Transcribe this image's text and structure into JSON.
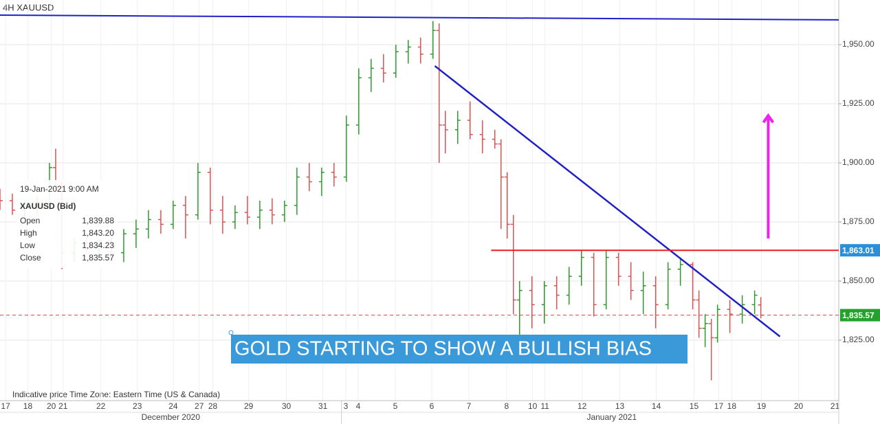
{
  "chart_data": {
    "type": "ohlc",
    "title": "4H   XAUUSD",
    "footer": "Indicative price    Time Zone: Eastern Time (US & Canada)",
    "annotation": "GOLD  STARTING TO SHOW A BULLISH BIAS",
    "months": [
      {
        "label": "December 2020",
        "value": 27.6
      },
      {
        "label": "January 2021",
        "value": 98.9
      }
    ],
    "month_breaks": [
      55.2,
      135.6
    ],
    "info": {
      "date": "19-Jan-2021 9:00 AM",
      "symbol": "XAUUSD (Bid)",
      "rows": [
        [
          "Open",
          "1,839.88"
        ],
        [
          "High",
          "1,843.20"
        ],
        [
          "Low",
          "1,834.23"
        ],
        [
          "Close",
          "1,835.57"
        ]
      ]
    },
    "up_color": "#2e9a2e",
    "down_color": "#e0504f",
    "xlim": [
      0,
      135.6
    ],
    "ylim": [
      1799.4,
      1968.9
    ],
    "yticks": [
      {
        "value": 1825,
        "label": "1,825.00"
      },
      {
        "value": 1850,
        "label": "1,850.00"
      },
      {
        "value": 1875,
        "label": "1,875.00"
      },
      {
        "value": 1900,
        "label": "1,900.00"
      },
      {
        "value": 1925,
        "label": "1,925.00"
      },
      {
        "value": 1950,
        "label": "1,950.00"
      }
    ],
    "xticks": [
      {
        "value": 0.9,
        "label": "17"
      },
      {
        "value": 4.5,
        "label": "18"
      },
      {
        "value": 8.3,
        "label": "20"
      },
      {
        "value": 10.2,
        "label": "21"
      },
      {
        "value": 16.3,
        "label": "22"
      },
      {
        "value": 22.2,
        "label": "23"
      },
      {
        "value": 28,
        "label": "24"
      },
      {
        "value": 32.2,
        "label": "27"
      },
      {
        "value": 34.4,
        "label": "28"
      },
      {
        "value": 40.2,
        "label": "29"
      },
      {
        "value": 46.3,
        "label": "30"
      },
      {
        "value": 52.2,
        "label": "31"
      },
      {
        "value": 55.9,
        "label": "3"
      },
      {
        "value": 57.9,
        "label": "4"
      },
      {
        "value": 63.9,
        "label": "5"
      },
      {
        "value": 69.8,
        "label": "6"
      },
      {
        "value": 75.8,
        "label": "7"
      },
      {
        "value": 81.9,
        "label": "8"
      },
      {
        "value": 86.1,
        "label": "10"
      },
      {
        "value": 88.1,
        "label": "11"
      },
      {
        "value": 94.1,
        "label": "12"
      },
      {
        "value": 100.2,
        "label": "13"
      },
      {
        "value": 106.1,
        "label": "14"
      },
      {
        "value": 112.2,
        "label": "15"
      },
      {
        "value": 116.2,
        "label": "17"
      },
      {
        "value": 118.3,
        "label": "18"
      },
      {
        "value": 123.1,
        "label": "19"
      },
      {
        "value": 129.1,
        "label": "20"
      },
      {
        "value": 135,
        "label": "21"
      }
    ],
    "price_badges": [
      {
        "value": 1863.01,
        "label": "1,863.01",
        "color": "#2b8fd6"
      },
      {
        "value": 1835.57,
        "label": "1,835.57",
        "color": "#22a22a"
      }
    ],
    "lines": [
      {
        "name": "resistance",
        "color": "#1f1fc8",
        "x": [
          0,
          135.6
        ],
        "y": [
          1962.5,
          1960.5
        ],
        "width": 2
      },
      {
        "name": "trendline",
        "color": "#1f1fc8",
        "x": [
          70.3,
          126.1
        ],
        "y": [
          1941,
          1826.5
        ],
        "width": 2.5
      },
      {
        "name": "support",
        "color": "#e81e1e",
        "x": [
          79.4,
          135.6
        ],
        "y": [
          1863.01,
          1863.01
        ],
        "width": 2
      },
      {
        "name": "last-price",
        "color": "#e04040",
        "x": [
          0,
          135.6
        ],
        "y": [
          1835.57,
          1835.57
        ],
        "width": 1,
        "dashed": true
      }
    ],
    "arrow": {
      "color": "#ee22ee",
      "x": 124.2,
      "y": [
        1868,
        1920
      ]
    },
    "bars": [
      {
        "x": 0,
        "open": 1886,
        "high": 1889,
        "low": 1880,
        "close": 1884
      },
      {
        "x": 2,
        "open": 1884,
        "high": 1887,
        "low": 1878,
        "close": 1880
      },
      {
        "x": 4,
        "open": 1880,
        "high": 1884,
        "low": 1876,
        "close": 1882
      },
      {
        "x": 6,
        "open": 1882,
        "high": 1886,
        "low": 1878,
        "close": 1883
      },
      {
        "x": 8,
        "open": 1883,
        "high": 1900,
        "low": 1880,
        "close": 1898
      },
      {
        "x": 9,
        "open": 1898,
        "high": 1906,
        "low": 1888,
        "close": 1890
      },
      {
        "x": 10,
        "open": 1890,
        "high": 1892,
        "low": 1855,
        "close": 1862
      },
      {
        "x": 12,
        "open": 1862,
        "high": 1868,
        "low": 1858,
        "close": 1866
      },
      {
        "x": 14,
        "open": 1866,
        "high": 1870,
        "low": 1862,
        "close": 1864
      },
      {
        "x": 16,
        "open": 1864,
        "high": 1868,
        "low": 1860,
        "close": 1867
      },
      {
        "x": 18,
        "open": 1867,
        "high": 1870,
        "low": 1858,
        "close": 1862
      },
      {
        "x": 20,
        "open": 1862,
        "high": 1872,
        "low": 1858,
        "close": 1870
      },
      {
        "x": 22,
        "open": 1870,
        "high": 1876,
        "low": 1864,
        "close": 1872
      },
      {
        "x": 24,
        "open": 1872,
        "high": 1880,
        "low": 1868,
        "close": 1876
      },
      {
        "x": 26,
        "open": 1876,
        "high": 1880,
        "low": 1870,
        "close": 1874
      },
      {
        "x": 28,
        "open": 1874,
        "high": 1884,
        "low": 1872,
        "close": 1882
      },
      {
        "x": 30,
        "open": 1882,
        "high": 1886,
        "low": 1868,
        "close": 1878
      },
      {
        "x": 32,
        "open": 1878,
        "high": 1900,
        "low": 1876,
        "close": 1896
      },
      {
        "x": 34,
        "open": 1896,
        "high": 1898,
        "low": 1874,
        "close": 1880
      },
      {
        "x": 36,
        "open": 1880,
        "high": 1886,
        "low": 1870,
        "close": 1875
      },
      {
        "x": 38,
        "open": 1875,
        "high": 1882,
        "low": 1872,
        "close": 1879
      },
      {
        "x": 40,
        "open": 1879,
        "high": 1886,
        "low": 1874,
        "close": 1877
      },
      {
        "x": 42,
        "open": 1877,
        "high": 1884,
        "low": 1872,
        "close": 1880
      },
      {
        "x": 44,
        "open": 1880,
        "high": 1885,
        "low": 1874,
        "close": 1878
      },
      {
        "x": 46,
        "open": 1878,
        "high": 1884,
        "low": 1875,
        "close": 1882
      },
      {
        "x": 48,
        "open": 1882,
        "high": 1898,
        "low": 1878,
        "close": 1894
      },
      {
        "x": 50,
        "open": 1894,
        "high": 1900,
        "low": 1888,
        "close": 1892
      },
      {
        "x": 52,
        "open": 1892,
        "high": 1898,
        "low": 1886,
        "close": 1896
      },
      {
        "x": 54,
        "open": 1896,
        "high": 1900,
        "low": 1890,
        "close": 1894
      },
      {
        "x": 56,
        "open": 1894,
        "high": 1920,
        "low": 1892,
        "close": 1916
      },
      {
        "x": 58,
        "open": 1916,
        "high": 1940,
        "low": 1912,
        "close": 1936
      },
      {
        "x": 60,
        "open": 1936,
        "high": 1944,
        "low": 1930,
        "close": 1940
      },
      {
        "x": 62,
        "open": 1940,
        "high": 1946,
        "low": 1934,
        "close": 1938
      },
      {
        "x": 64,
        "open": 1938,
        "high": 1950,
        "low": 1936,
        "close": 1947
      },
      {
        "x": 66,
        "open": 1947,
        "high": 1952,
        "low": 1942,
        "close": 1949
      },
      {
        "x": 68,
        "open": 1949,
        "high": 1953,
        "low": 1942,
        "close": 1946
      },
      {
        "x": 70,
        "open": 1946,
        "high": 1960,
        "low": 1944,
        "close": 1956
      },
      {
        "x": 71,
        "open": 1956,
        "high": 1959,
        "low": 1900,
        "close": 1916
      },
      {
        "x": 72,
        "open": 1916,
        "high": 1922,
        "low": 1904,
        "close": 1914
      },
      {
        "x": 74,
        "open": 1914,
        "high": 1922,
        "low": 1908,
        "close": 1918
      },
      {
        "x": 76,
        "open": 1918,
        "high": 1926,
        "low": 1910,
        "close": 1912
      },
      {
        "x": 78,
        "open": 1912,
        "high": 1918,
        "low": 1904,
        "close": 1910
      },
      {
        "x": 80,
        "open": 1910,
        "high": 1914,
        "low": 1906,
        "close": 1908
      },
      {
        "x": 81,
        "open": 1908,
        "high": 1910,
        "low": 1872,
        "close": 1894
      },
      {
        "x": 82,
        "open": 1894,
        "high": 1896,
        "low": 1868,
        "close": 1874
      },
      {
        "x": 83,
        "open": 1874,
        "high": 1878,
        "low": 1836,
        "close": 1842
      },
      {
        "x": 84,
        "open": 1842,
        "high": 1850,
        "low": 1824,
        "close": 1846
      },
      {
        "x": 86,
        "open": 1846,
        "high": 1852,
        "low": 1830,
        "close": 1840
      },
      {
        "x": 88,
        "open": 1840,
        "high": 1850,
        "low": 1832,
        "close": 1848
      },
      {
        "x": 90,
        "open": 1848,
        "high": 1852,
        "low": 1838,
        "close": 1844
      },
      {
        "x": 92,
        "open": 1844,
        "high": 1856,
        "low": 1840,
        "close": 1852
      },
      {
        "x": 94,
        "open": 1852,
        "high": 1863,
        "low": 1848,
        "close": 1860
      },
      {
        "x": 96,
        "open": 1860,
        "high": 1862,
        "low": 1835,
        "close": 1840
      },
      {
        "x": 98,
        "open": 1840,
        "high": 1863,
        "low": 1838,
        "close": 1860
      },
      {
        "x": 100,
        "open": 1860,
        "high": 1862,
        "low": 1848,
        "close": 1852
      },
      {
        "x": 102,
        "open": 1852,
        "high": 1858,
        "low": 1842,
        "close": 1846
      },
      {
        "x": 104,
        "open": 1846,
        "high": 1854,
        "low": 1836,
        "close": 1848
      },
      {
        "x": 106,
        "open": 1848,
        "high": 1852,
        "low": 1830,
        "close": 1840
      },
      {
        "x": 108,
        "open": 1840,
        "high": 1858,
        "low": 1838,
        "close": 1855
      },
      {
        "x": 110,
        "open": 1855,
        "high": 1860,
        "low": 1848,
        "close": 1857
      },
      {
        "x": 112,
        "open": 1857,
        "high": 1858,
        "low": 1838,
        "close": 1842
      },
      {
        "x": 113,
        "open": 1842,
        "high": 1846,
        "low": 1826,
        "close": 1830
      },
      {
        "x": 114,
        "open": 1830,
        "high": 1836,
        "low": 1822,
        "close": 1832
      },
      {
        "x": 115,
        "open": 1832,
        "high": 1834,
        "low": 1808,
        "close": 1826
      },
      {
        "x": 116,
        "open": 1826,
        "high": 1840,
        "low": 1824,
        "close": 1838
      },
      {
        "x": 118,
        "open": 1838,
        "high": 1842,
        "low": 1828,
        "close": 1836
      },
      {
        "x": 120,
        "open": 1836,
        "high": 1844,
        "low": 1832,
        "close": 1840
      },
      {
        "x": 122,
        "open": 1840,
        "high": 1846,
        "low": 1836,
        "close": 1844
      },
      {
        "x": 123,
        "open": 1839.88,
        "high": 1843.2,
        "low": 1834.23,
        "close": 1835.57
      }
    ]
  }
}
